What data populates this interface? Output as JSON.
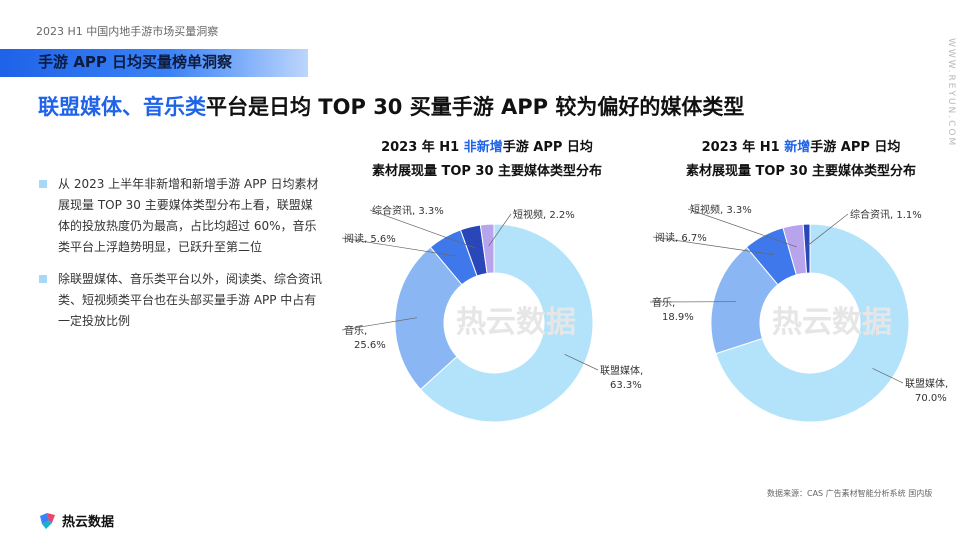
{
  "header": {
    "report_title": "2023 H1 中国内地手游市场买量洞察",
    "section_title": "手游 APP 日均买量榜单洞察",
    "watermark_url": "WWW.REYUN.COM"
  },
  "headline": {
    "highlight": "联盟媒体、音乐类",
    "rest": "平台是日均 TOP 30 买量手游 APP 较为偏好的媒体类型"
  },
  "bullets": [
    "从 2023 上半年非新增和新增手游 APP 日均素材展现量 TOP 30 主要媒体类型分布上看，联盟媒体的投放热度仍为最高，占比均超过 60%，音乐类平台上浮趋势明显，已跃升至第二位",
    "除联盟媒体、音乐类平台以外，阅读类、综合资讯类、短视频类平台也在头部买量手游 APP 中占有一定投放比例"
  ],
  "colors": {
    "联盟媒体": "#b3e3fa",
    "音乐": "#8ab6f4",
    "阅读": "#3f78ea",
    "综合资讯": "#2947b8",
    "短视频": "#b8a4ec",
    "accent": "#1e63e8"
  },
  "chart_data": [
    {
      "type": "pie",
      "title_parts": [
        "2023 年 H1 ",
        "非新增",
        "手游 APP 日均"
      ],
      "title_line2": "素材展现量 TOP 30 主要媒体类型分布",
      "series": [
        {
          "name": "联盟媒体",
          "value": 63.3,
          "label": "联盟媒体,",
          "pct": "63.3%"
        },
        {
          "name": "音乐",
          "value": 25.6,
          "label": "音乐,",
          "pct": "25.6%"
        },
        {
          "name": "阅读",
          "value": 5.6,
          "label": "阅读, 5.6%"
        },
        {
          "name": "综合资讯",
          "value": 3.3,
          "label": "综合资讯, 3.3%"
        },
        {
          "name": "短视频",
          "value": 2.2,
          "label": "短视频, 2.2%"
        }
      ],
      "watermark": "热云数据"
    },
    {
      "type": "pie",
      "title_parts": [
        "2023 年 H1 ",
        "新增",
        "手游 APP 日均"
      ],
      "title_line2": "素材展现量 TOP 30 主要媒体类型分布",
      "series": [
        {
          "name": "联盟媒体",
          "value": 70.0,
          "label": "联盟媒体,",
          "pct": "70.0%"
        },
        {
          "name": "音乐",
          "value": 18.9,
          "label": "音乐,",
          "pct": "18.9%"
        },
        {
          "name": "阅读",
          "value": 6.7,
          "label": "阅读, 6.7%"
        },
        {
          "name": "短视频",
          "value": 3.3,
          "label": "短视频, 3.3%"
        },
        {
          "name": "综合资讯",
          "value": 1.1,
          "label": "综合资讯, 1.1%"
        }
      ],
      "watermark": "热云数据"
    }
  ],
  "footer": {
    "source": "数据来源：CAS 广告素材智能分析系统 国内版",
    "logo_text": "热云数据"
  }
}
